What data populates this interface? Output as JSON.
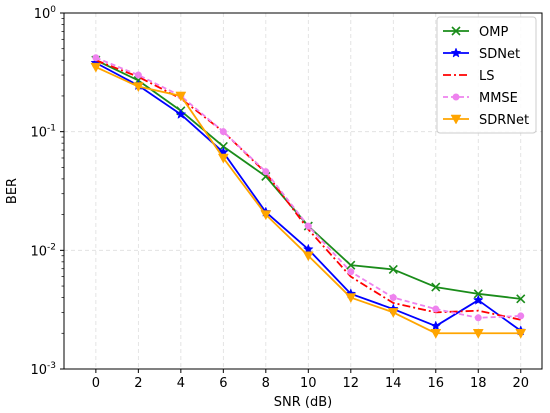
{
  "chart_data": {
    "type": "line",
    "xlabel": "SNR (dB)",
    "ylabel": "BER",
    "x": [
      0,
      2,
      4,
      6,
      8,
      10,
      12,
      14,
      16,
      18,
      20
    ],
    "xlim": [
      -1.5,
      21
    ],
    "ylim": [
      0.001,
      1
    ],
    "yscale": "log",
    "y_tick_labels": [
      {
        "base": "10",
        "exp": "0",
        "value": 1
      },
      {
        "base": "10",
        "exp": "-1",
        "value": 0.1
      },
      {
        "base": "10",
        "exp": "-2",
        "value": 0.01
      },
      {
        "base": "10",
        "exp": "-3",
        "value": 0.001
      }
    ],
    "x_tick_labels": [
      "0",
      "2",
      "4",
      "6",
      "8",
      "10",
      "12",
      "14",
      "16",
      "18",
      "20"
    ],
    "grid": true,
    "legend_position": "top-right",
    "series": [
      {
        "name": "OMP",
        "color": "#1a8c1a",
        "dash": "solid",
        "marker": "x",
        "values": [
          0.4,
          0.27,
          0.15,
          0.075,
          0.042,
          0.016,
          0.0075,
          0.0069,
          0.0049,
          0.0043,
          0.0039
        ]
      },
      {
        "name": "SDNet",
        "color": "#0000ff",
        "dash": "solid",
        "marker": "star",
        "values": [
          0.38,
          0.245,
          0.14,
          0.067,
          0.021,
          0.0102,
          0.0043,
          0.0032,
          0.0023,
          0.0038,
          0.0021
        ]
      },
      {
        "name": "LS",
        "color": "#ff0000",
        "dash": "dashdot",
        "marker": "none",
        "values": [
          0.4,
          0.29,
          0.19,
          0.1,
          0.045,
          0.015,
          0.006,
          0.0036,
          0.003,
          0.0031,
          0.0026
        ]
      },
      {
        "name": "MMSE",
        "color": "#ee82ee",
        "dash": "dashed",
        "marker": "circle",
        "values": [
          0.42,
          0.3,
          0.2,
          0.1,
          0.046,
          0.016,
          0.0066,
          0.004,
          0.0032,
          0.0027,
          0.0028
        ]
      },
      {
        "name": "SDRNet",
        "color": "#ffa500",
        "dash": "solid",
        "marker": "triangle-down",
        "values": [
          0.35,
          0.24,
          0.2,
          0.06,
          0.02,
          0.009,
          0.004,
          0.003,
          0.002,
          0.002,
          0.002
        ]
      }
    ]
  }
}
